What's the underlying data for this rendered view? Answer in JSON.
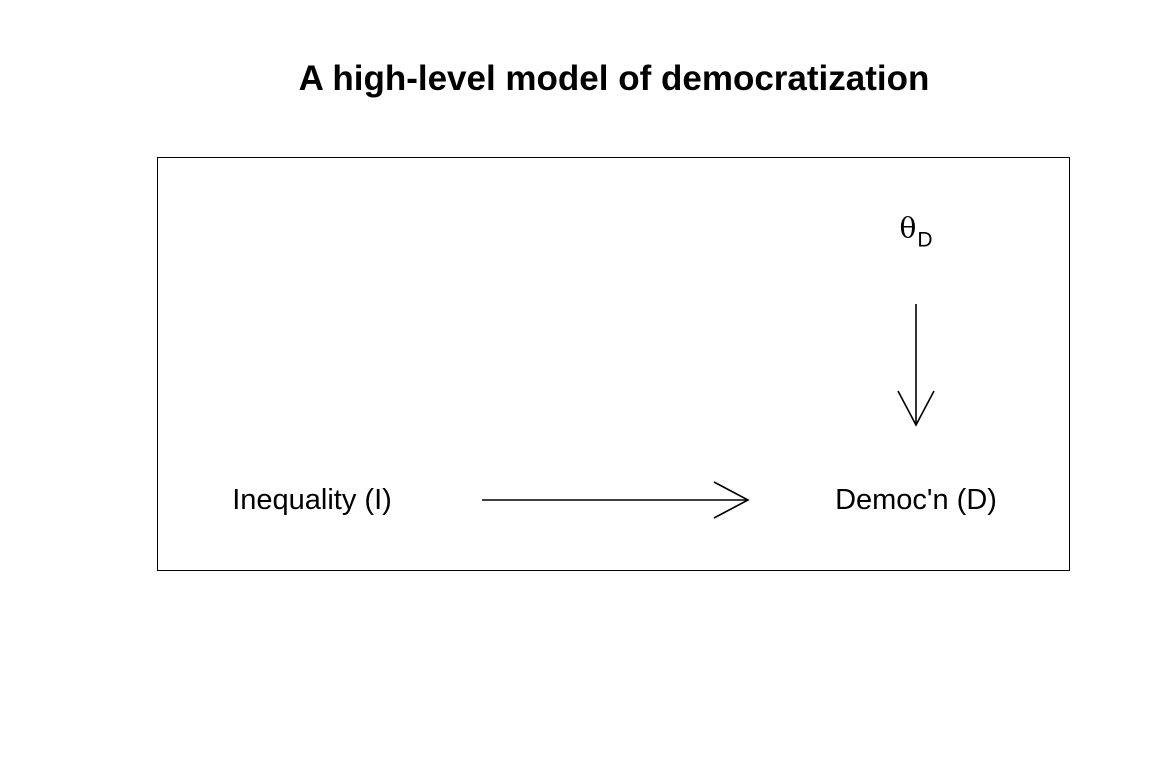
{
  "title": "A high-level model of democratization",
  "nodes": {
    "inequality": "Inequality (I)",
    "democ": "Democ'n (D)",
    "theta_symbol": "θ",
    "theta_subscript": "D"
  },
  "edges": [
    {
      "from": "Inequality (I)",
      "to": "Democ'n (D)"
    },
    {
      "from": "θD",
      "to": "Democ'n (D)"
    }
  ]
}
